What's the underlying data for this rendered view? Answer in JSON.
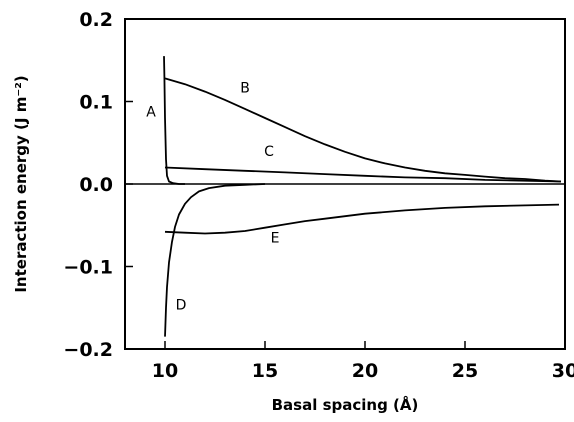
{
  "chart_data": {
    "type": "line",
    "xlabel": "Basal spacing (Å)",
    "ylabel": "Interaction energy (J m⁻²)",
    "xlim": [
      8,
      30
    ],
    "ylim": [
      -0.2,
      0.2
    ],
    "xticks": [
      10,
      15,
      20,
      25,
      30
    ],
    "yticks": [
      -0.2,
      -0.1,
      0.0,
      0.1,
      0.2
    ],
    "xtick_labels": [
      "10",
      "15",
      "20",
      "25",
      "30"
    ],
    "ytick_labels": [
      "−0.2",
      "−0.1",
      "0.0",
      "0.1",
      "0.2"
    ],
    "grid": false,
    "zero_line": true,
    "series": [
      {
        "name": "A",
        "x": [
          9.95,
          9.97,
          10.0,
          10.05,
          10.1,
          10.2,
          10.4,
          10.7,
          11.0
        ],
        "y": [
          0.155,
          0.13,
          0.08,
          0.03,
          0.01,
          0.003,
          0.001,
          0.0,
          0.0
        ]
      },
      {
        "name": "B",
        "x": [
          10.0,
          11,
          12,
          13,
          14,
          15,
          16,
          17,
          18,
          19,
          20,
          21,
          22,
          23,
          24,
          25,
          26,
          27,
          28,
          29,
          29.8
        ],
        "y": [
          0.128,
          0.121,
          0.112,
          0.102,
          0.091,
          0.08,
          0.069,
          0.058,
          0.048,
          0.039,
          0.031,
          0.025,
          0.02,
          0.016,
          0.013,
          0.011,
          0.009,
          0.007,
          0.006,
          0.004,
          0.003
        ]
      },
      {
        "name": "C",
        "x": [
          10.0,
          12,
          14,
          16,
          18,
          20,
          22,
          24,
          26,
          28,
          29.8
        ],
        "y": [
          0.02,
          0.018,
          0.016,
          0.014,
          0.012,
          0.01,
          0.008,
          0.007,
          0.005,
          0.004,
          0.003
        ]
      },
      {
        "name": "D",
        "x": [
          10.0,
          10.05,
          10.1,
          10.2,
          10.35,
          10.5,
          10.7,
          11.0,
          11.3,
          11.7,
          12.2,
          13.0,
          14.0,
          15.0
        ],
        "y": [
          -0.185,
          -0.15,
          -0.125,
          -0.095,
          -0.07,
          -0.052,
          -0.037,
          -0.024,
          -0.016,
          -0.009,
          -0.005,
          -0.002,
          -0.001,
          0.0
        ]
      },
      {
        "name": "E",
        "x": [
          10.0,
          11,
          12,
          13,
          14,
          15,
          16,
          17,
          18,
          19,
          20,
          22,
          24,
          26,
          28,
          29.7
        ],
        "y": [
          -0.058,
          -0.059,
          -0.06,
          -0.059,
          -0.057,
          -0.053,
          -0.049,
          -0.045,
          -0.042,
          -0.039,
          -0.036,
          -0.032,
          -0.029,
          -0.027,
          -0.026,
          -0.025
        ]
      }
    ],
    "curve_labels": [
      {
        "text": "A",
        "x": 9.3,
        "y": 0.082
      },
      {
        "text": "B",
        "x": 14.0,
        "y": 0.111
      },
      {
        "text": "C",
        "x": 15.2,
        "y": 0.034
      },
      {
        "text": "D",
        "x": 10.8,
        "y": -0.152
      },
      {
        "text": "E",
        "x": 15.5,
        "y": -0.071
      }
    ]
  }
}
